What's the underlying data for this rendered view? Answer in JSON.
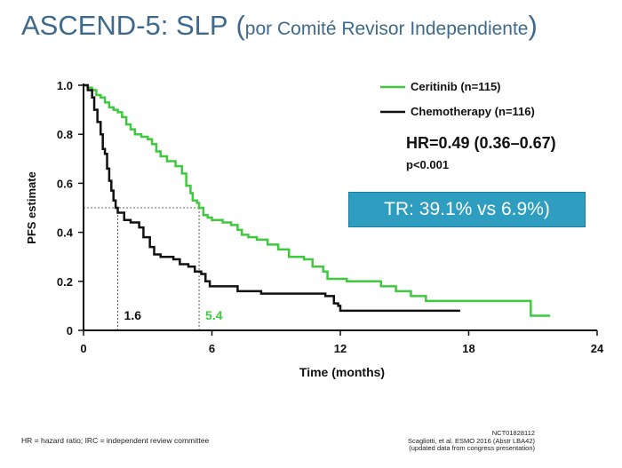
{
  "title": {
    "main": "ASCEND-5: SLP",
    "paren_open": "(",
    "sub": "por Comité Revisor Independiente",
    "paren_close": ")"
  },
  "tr_box": {
    "text": "TR: 39.1% vs 6.9%)",
    "color": "#2e9dbf"
  },
  "footer": {
    "abbrev": "HR = hazard ratio; IRC = independent review committee",
    "trial_id": "NCT01828112",
    "citation": "Scagliotti, et al. ESMO 2016 (Abstr LBA42)",
    "note": "(updated data from congress presentation)"
  },
  "chart_data": {
    "type": "line",
    "step": true,
    "xlabel": "Time (months)",
    "ylabel": "PFS estimate",
    "xlim": [
      0,
      24
    ],
    "ylim": [
      0,
      1.0
    ],
    "xticks": [
      0,
      6,
      12,
      18,
      24
    ],
    "yticks": [
      0,
      0.2,
      0.4,
      0.6,
      0.8,
      1.0
    ],
    "ytick_labels": [
      "0",
      "0.2",
      "0.4",
      "0.6",
      "0.8",
      "1.0"
    ],
    "xtick_labels": [
      "0",
      "6",
      "12",
      "18",
      "24"
    ],
    "grid": false,
    "legend_position": "top-right",
    "series": [
      {
        "name": "Ceritinib (n=115)",
        "color": "#3fc93f",
        "median": 5.4,
        "median_label": "5.4",
        "points": [
          [
            0,
            1.0
          ],
          [
            0.2,
            0.99
          ],
          [
            0.4,
            0.98
          ],
          [
            0.6,
            0.96
          ],
          [
            0.8,
            0.95
          ],
          [
            1.0,
            0.93
          ],
          [
            1.2,
            0.91
          ],
          [
            1.4,
            0.9
          ],
          [
            1.6,
            0.89
          ],
          [
            1.8,
            0.87
          ],
          [
            2.0,
            0.84
          ],
          [
            2.2,
            0.82
          ],
          [
            2.4,
            0.8
          ],
          [
            2.7,
            0.79
          ],
          [
            3.0,
            0.78
          ],
          [
            3.2,
            0.76
          ],
          [
            3.4,
            0.73
          ],
          [
            3.6,
            0.71
          ],
          [
            3.9,
            0.69
          ],
          [
            4.3,
            0.67
          ],
          [
            4.6,
            0.64
          ],
          [
            4.8,
            0.59
          ],
          [
            5.0,
            0.56
          ],
          [
            5.1,
            0.53
          ],
          [
            5.3,
            0.52
          ],
          [
            5.4,
            0.5
          ],
          [
            5.6,
            0.47
          ],
          [
            5.8,
            0.46
          ],
          [
            6.0,
            0.45
          ],
          [
            6.5,
            0.44
          ],
          [
            6.9,
            0.43
          ],
          [
            7.2,
            0.41
          ],
          [
            7.4,
            0.39
          ],
          [
            7.7,
            0.38
          ],
          [
            8.1,
            0.37
          ],
          [
            8.6,
            0.35
          ],
          [
            9.1,
            0.33
          ],
          [
            9.6,
            0.3
          ],
          [
            10.3,
            0.29
          ],
          [
            10.7,
            0.26
          ],
          [
            11.2,
            0.24
          ],
          [
            11.4,
            0.21
          ],
          [
            12.3,
            0.2
          ],
          [
            13.9,
            0.18
          ],
          [
            14.6,
            0.16
          ],
          [
            15.3,
            0.14
          ],
          [
            16.0,
            0.12
          ],
          [
            17.0,
            0.12
          ],
          [
            18.5,
            0.12
          ],
          [
            20.9,
            0.06
          ],
          [
            21.8,
            0.06
          ]
        ]
      },
      {
        "name": "Chemotherapy (n=116)",
        "color": "#111111",
        "median": 1.6,
        "median_label": "1.6",
        "points": [
          [
            0,
            1.0
          ],
          [
            0.2,
            0.98
          ],
          [
            0.4,
            0.95
          ],
          [
            0.5,
            0.9
          ],
          [
            0.65,
            0.85
          ],
          [
            0.8,
            0.8
          ],
          [
            0.9,
            0.74
          ],
          [
            1.0,
            0.72
          ],
          [
            1.1,
            0.66
          ],
          [
            1.2,
            0.61
          ],
          [
            1.3,
            0.57
          ],
          [
            1.4,
            0.53
          ],
          [
            1.5,
            0.5
          ],
          [
            1.6,
            0.48
          ],
          [
            1.9,
            0.45
          ],
          [
            2.2,
            0.44
          ],
          [
            2.6,
            0.42
          ],
          [
            2.8,
            0.38
          ],
          [
            3.1,
            0.34
          ],
          [
            3.3,
            0.31
          ],
          [
            3.6,
            0.3
          ],
          [
            4.2,
            0.29
          ],
          [
            4.5,
            0.27
          ],
          [
            4.9,
            0.26
          ],
          [
            5.2,
            0.24
          ],
          [
            5.5,
            0.23
          ],
          [
            5.7,
            0.2
          ],
          [
            5.9,
            0.18
          ],
          [
            7.0,
            0.18
          ],
          [
            7.2,
            0.16
          ],
          [
            8.3,
            0.15
          ],
          [
            10.8,
            0.15
          ],
          [
            11.3,
            0.14
          ],
          [
            11.7,
            0.11
          ],
          [
            11.9,
            0.1
          ],
          [
            12.0,
            0.08
          ],
          [
            12.3,
            0.08
          ],
          [
            17.6,
            0.08
          ]
        ]
      }
    ],
    "median_reference_y": 0.5,
    "annotations": {
      "hr": "HR=0.49 (0.36–0.67)",
      "p": "p<0.001"
    }
  }
}
